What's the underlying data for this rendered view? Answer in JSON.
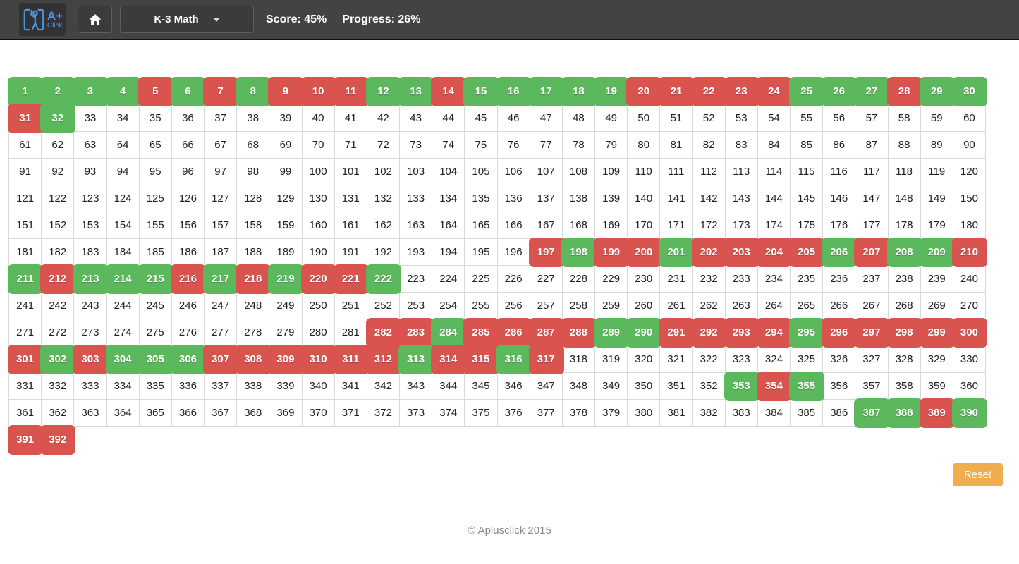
{
  "header": {
    "logo": {
      "text_main": "A+",
      "text_sub": "Click"
    },
    "home_button": {
      "icon": "home-icon"
    },
    "category_dropdown": {
      "label": "K-3 Math",
      "icon": "caret-down-icon"
    },
    "score_label": "Score: 45%",
    "progress_label": "Progress: 26%"
  },
  "grid": {
    "columns": 30,
    "total_cells": 392,
    "colors": {
      "correct": "#5cb85c",
      "incorrect": "#d9534f"
    },
    "correct_cells": [
      1,
      2,
      3,
      4,
      6,
      8,
      12,
      13,
      15,
      16,
      17,
      18,
      19,
      25,
      26,
      27,
      29,
      30,
      32,
      198,
      201,
      206,
      208,
      209,
      211,
      213,
      214,
      215,
      217,
      219,
      222,
      284,
      289,
      290,
      295,
      302,
      304,
      305,
      306,
      313,
      316,
      353,
      355,
      387,
      388,
      390
    ],
    "incorrect_cells": [
      5,
      7,
      9,
      10,
      11,
      14,
      20,
      21,
      22,
      23,
      24,
      28,
      31,
      197,
      199,
      200,
      202,
      203,
      204,
      205,
      207,
      210,
      212,
      216,
      218,
      220,
      221,
      282,
      283,
      285,
      286,
      287,
      288,
      291,
      292,
      293,
      294,
      296,
      297,
      298,
      299,
      300,
      301,
      303,
      307,
      308,
      309,
      310,
      311,
      312,
      314,
      315,
      317,
      354,
      389,
      391,
      392
    ]
  },
  "reset_button": {
    "label": "Reset",
    "color": "#f0ad4e"
  },
  "footer": {
    "copyright": "© Aplusclick 2015"
  }
}
